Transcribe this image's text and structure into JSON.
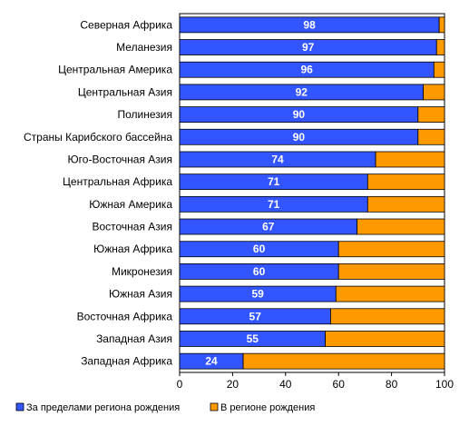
{
  "chart_data": {
    "type": "bar",
    "orientation": "horizontal",
    "stacked": true,
    "percent_stacked": true,
    "categories": [
      "Северная Африка",
      "Меланезия",
      "Центральная Америка",
      "Центральная Азия",
      "Полинезия",
      "Страны Карибского бассейна",
      "Юго-Восточная Азия",
      "Центральная Африка",
      "Южная Америка",
      "Восточная Азия",
      "Южная Африка",
      "Микронезия",
      "Южная Азия",
      "Восточная Африка",
      "Западная Азия",
      "Западная Африка"
    ],
    "series": [
      {
        "name": "За пределами региона рождения",
        "color": "#3355ff",
        "values": [
          98,
          97,
          96,
          92,
          90,
          90,
          74,
          71,
          71,
          67,
          60,
          60,
          59,
          57,
          55,
          24
        ],
        "data_labels": true
      },
      {
        "name": "В регионе рождения",
        "color": "#ff9900",
        "values": [
          2,
          3,
          4,
          8,
          10,
          10,
          26,
          29,
          29,
          33,
          40,
          40,
          41,
          43,
          45,
          76
        ],
        "data_labels": false
      }
    ],
    "xlim": [
      0,
      100
    ],
    "xticks": [
      0,
      20,
      40,
      60,
      80,
      100
    ],
    "grid": false,
    "legend_position": "bottom-left"
  }
}
